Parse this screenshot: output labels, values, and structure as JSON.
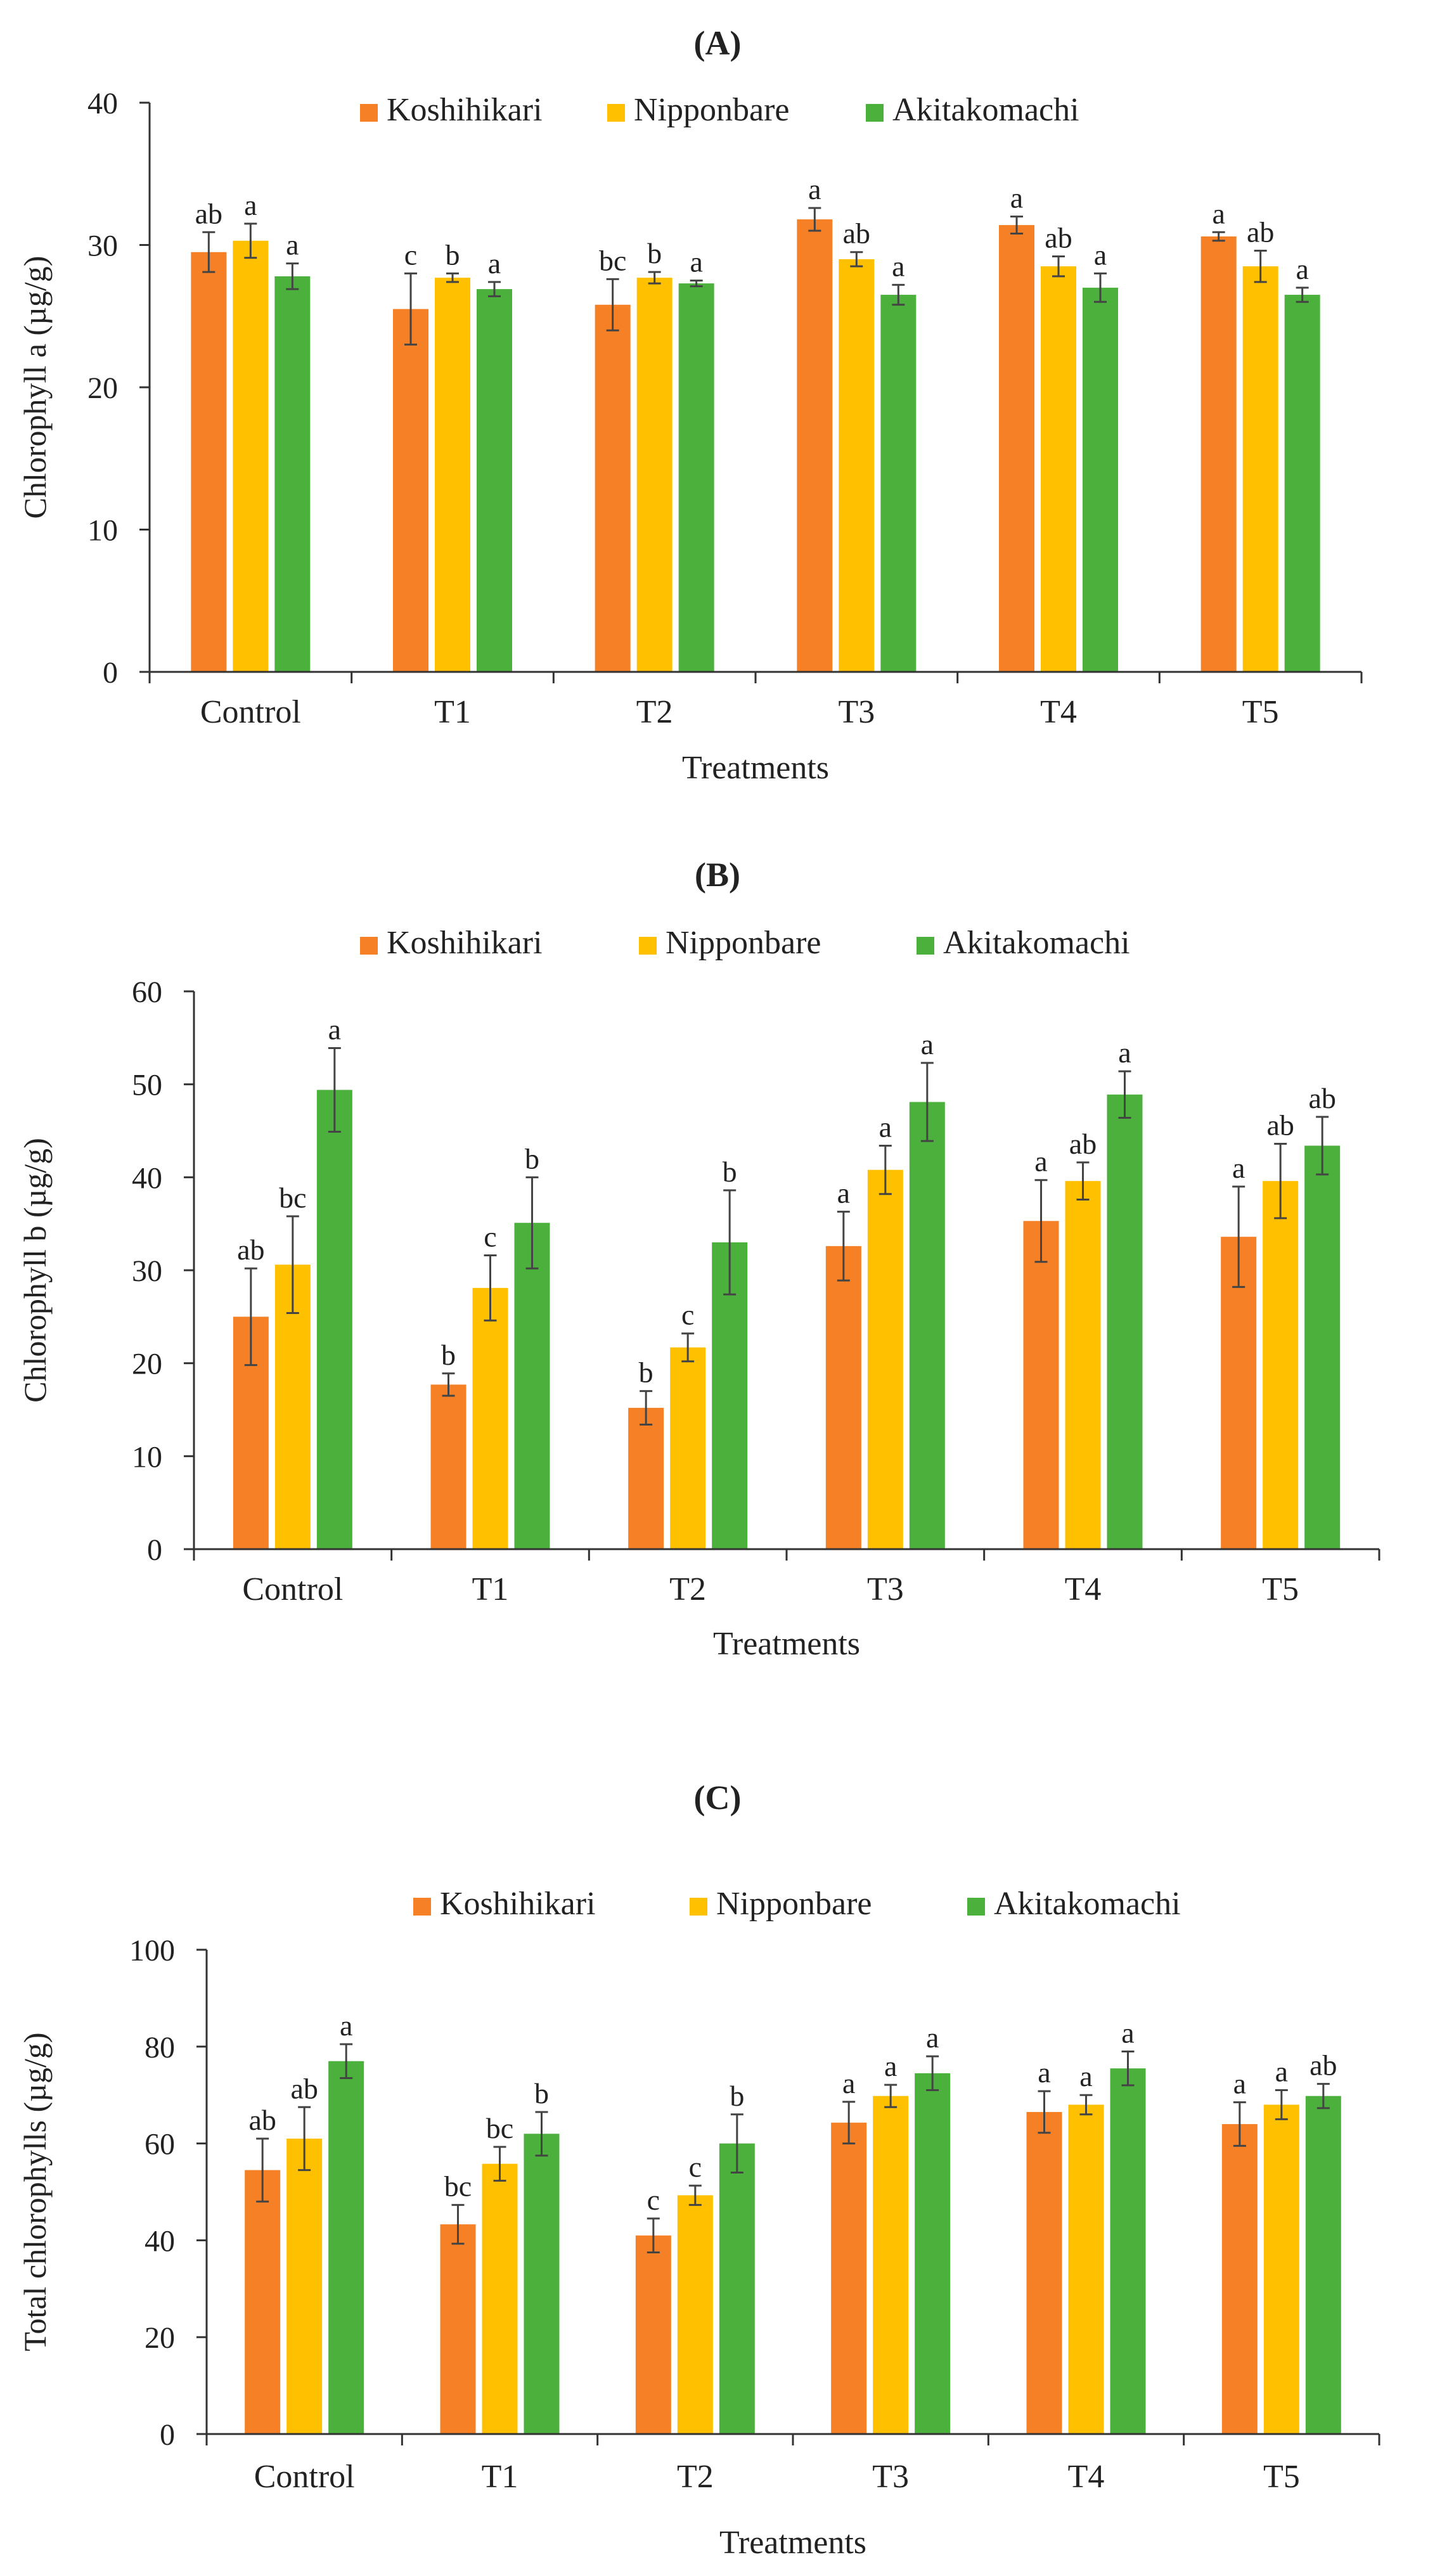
{
  "figure": {
    "colors": {
      "Koshihikari": "#f58026",
      "Nipponbare": "#ffc000",
      "Akitakomachi": "#4cb03c",
      "axis": "#333333",
      "errorbar": "#444444"
    }
  },
  "chart_data": [
    {
      "type": "bar",
      "panel": "(A)",
      "title": "(A)",
      "xlabel": "Treatments",
      "ylabel": "Chlorophyll a (µg/g)",
      "ylim": [
        0,
        40
      ],
      "yticks": [
        0,
        10,
        20,
        30,
        40
      ],
      "legend_position": "top",
      "categories": [
        "Control",
        "T1",
        "T2",
        "T3",
        "T4",
        "T5"
      ],
      "series": [
        {
          "name": "Koshihikari",
          "values": [
            29.5,
            25.5,
            25.8,
            31.8,
            31.4,
            30.6
          ],
          "errors": [
            1.4,
            2.5,
            1.8,
            0.8,
            0.6,
            0.3
          ],
          "labels": [
            "ab",
            "c",
            "bc",
            "a",
            "a",
            "a"
          ]
        },
        {
          "name": "Nipponbare",
          "values": [
            30.3,
            27.7,
            27.7,
            29.0,
            28.5,
            28.5
          ],
          "errors": [
            1.2,
            0.3,
            0.4,
            0.5,
            0.7,
            1.1
          ],
          "labels": [
            "a",
            "b",
            "b",
            "ab",
            "ab",
            "ab"
          ]
        },
        {
          "name": "Akitakomachi",
          "values": [
            27.8,
            26.9,
            27.3,
            26.5,
            27.0,
            26.5
          ],
          "errors": [
            0.9,
            0.5,
            0.2,
            0.7,
            1.0,
            0.5
          ],
          "labels": [
            "a",
            "a",
            "a",
            "a",
            "a",
            "a"
          ]
        }
      ]
    },
    {
      "type": "bar",
      "panel": "(B)",
      "title": "(B)",
      "xlabel": "Treatments",
      "ylabel": "Chlorophyll b (µg/g)",
      "ylim": [
        0,
        60
      ],
      "yticks": [
        0,
        10,
        20,
        30,
        40,
        50,
        60
      ],
      "legend_position": "top",
      "categories": [
        "Control",
        "T1",
        "T2",
        "T3",
        "T4",
        "T5"
      ],
      "series": [
        {
          "name": "Koshihikari",
          "values": [
            25.0,
            17.7,
            15.2,
            32.6,
            35.3,
            33.6
          ],
          "errors": [
            5.2,
            1.2,
            1.8,
            3.7,
            4.4,
            5.4
          ],
          "labels": [
            "ab",
            "b",
            "b",
            "a",
            "a",
            "a"
          ]
        },
        {
          "name": "Nipponbare",
          "values": [
            30.6,
            28.1,
            21.7,
            40.8,
            39.6,
            39.6
          ],
          "errors": [
            5.2,
            3.5,
            1.5,
            2.6,
            2.0,
            4.0
          ],
          "labels": [
            "bc",
            "c",
            "c",
            "a",
            "ab",
            "ab"
          ]
        },
        {
          "name": "Akitakomachi",
          "values": [
            49.4,
            35.1,
            33.0,
            48.1,
            48.9,
            43.4
          ],
          "errors": [
            4.5,
            4.9,
            5.6,
            4.2,
            2.5,
            3.1
          ],
          "labels": [
            "a",
            "b",
            "b",
            "a",
            "a",
            "ab"
          ]
        }
      ]
    },
    {
      "type": "bar",
      "panel": "(C)",
      "title": "(C)",
      "xlabel": "Treatments",
      "ylabel": "Total chlorophylls (µg/g)",
      "ylim": [
        0,
        100
      ],
      "yticks": [
        0,
        20,
        40,
        60,
        80,
        100
      ],
      "legend_position": "top",
      "categories": [
        "Control",
        "T1",
        "T2",
        "T3",
        "T4",
        "T5"
      ],
      "series": [
        {
          "name": "Koshihikari",
          "values": [
            54.5,
            43.3,
            41.0,
            64.3,
            66.5,
            64.0
          ],
          "errors": [
            6.5,
            4.0,
            3.5,
            4.3,
            4.3,
            4.5
          ],
          "labels": [
            "ab",
            "bc",
            "c",
            "a",
            "a",
            "a"
          ]
        },
        {
          "name": "Nipponbare",
          "values": [
            61.0,
            55.8,
            49.3,
            69.8,
            68.0,
            68.0
          ],
          "errors": [
            6.5,
            3.5,
            2.0,
            2.3,
            2.0,
            3.0
          ],
          "labels": [
            "ab",
            "bc",
            "c",
            "a",
            "a",
            "a"
          ]
        },
        {
          "name": "Akitakomachi",
          "values": [
            77.0,
            62.0,
            60.0,
            74.5,
            75.5,
            69.8
          ],
          "errors": [
            3.5,
            4.5,
            6.0,
            3.5,
            3.5,
            2.5
          ],
          "labels": [
            "a",
            "b",
            "b",
            "a",
            "a",
            "ab"
          ]
        }
      ]
    }
  ]
}
